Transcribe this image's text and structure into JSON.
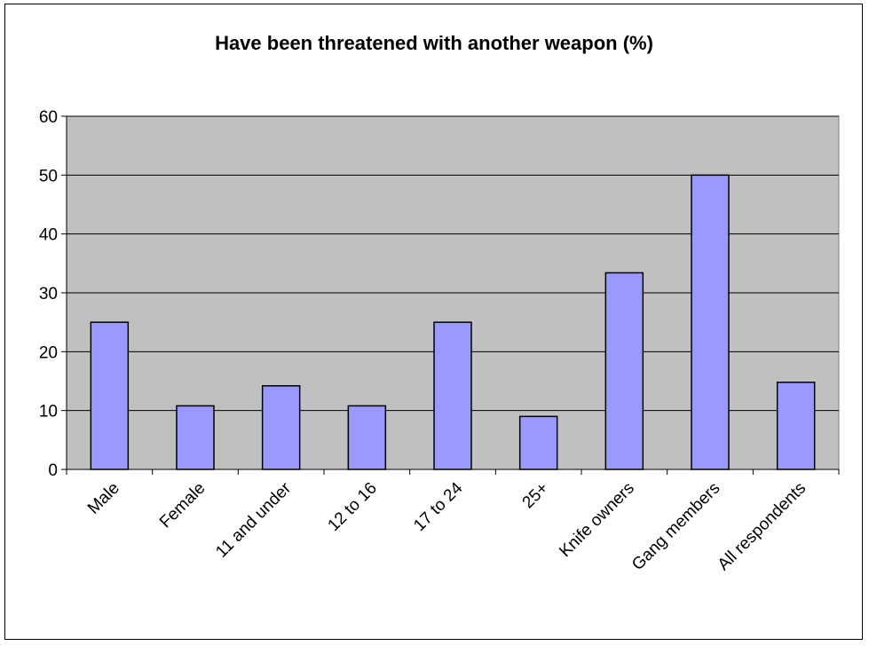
{
  "chart_data": {
    "type": "bar",
    "title": "Have been threatened with another weapon (%)",
    "categories": [
      "Male",
      "Female",
      "11 and under",
      "12 to 16",
      "17 to 24",
      "25+",
      "Knife owners",
      "Gang members",
      "All respondents"
    ],
    "values": [
      25,
      10.8,
      14.2,
      10.8,
      25,
      9,
      33.4,
      50,
      14.8
    ],
    "ylim": [
      0,
      60
    ],
    "yticks": [
      "0",
      "10",
      "20",
      "30",
      "40",
      "50",
      "60"
    ],
    "grid": true,
    "legend": "none",
    "colors": {
      "bar": "#9999ff",
      "plot_background": "#c0c0c0",
      "gridline": "#000000"
    }
  }
}
